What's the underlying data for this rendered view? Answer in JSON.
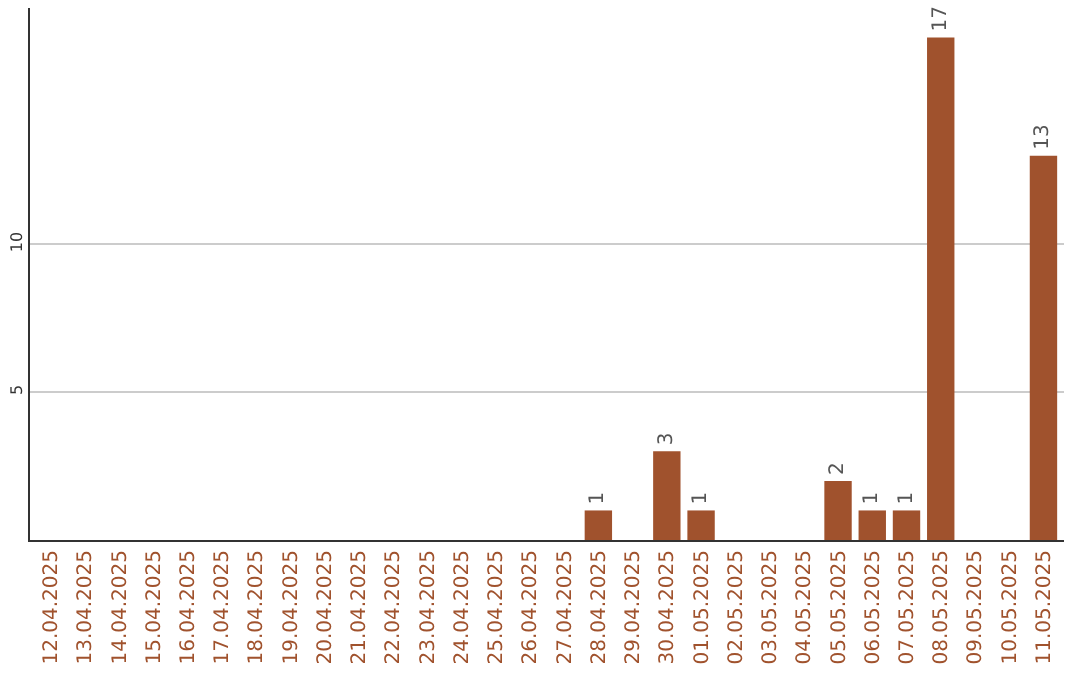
{
  "chart_data": {
    "type": "bar",
    "categories": [
      "12.04.2025",
      "13.04.2025",
      "14.04.2025",
      "15.04.2025",
      "16.04.2025",
      "17.04.2025",
      "18.04.2025",
      "19.04.2025",
      "20.04.2025",
      "21.04.2025",
      "22.04.2025",
      "23.04.2025",
      "24.04.2025",
      "25.04.2025",
      "26.04.2025",
      "27.04.2025",
      "28.04.2025",
      "29.04.2025",
      "30.04.2025",
      "01.05.2025",
      "02.05.2025",
      "03.05.2025",
      "04.05.2025",
      "05.05.2025",
      "06.05.2025",
      "07.05.2025",
      "08.05.2025",
      "09.05.2025",
      "10.05.2025",
      "11.05.2025"
    ],
    "values": [
      0,
      0,
      0,
      0,
      0,
      0,
      0,
      0,
      0,
      0,
      0,
      0,
      0,
      0,
      0,
      0,
      1,
      0,
      3,
      1,
      0,
      0,
      0,
      2,
      1,
      1,
      17,
      0,
      0,
      13
    ],
    "value_labels": [
      null,
      null,
      null,
      null,
      null,
      null,
      null,
      null,
      null,
      null,
      null,
      null,
      null,
      null,
      null,
      null,
      "1",
      null,
      "3",
      "1",
      null,
      null,
      null,
      "2",
      "1",
      "1",
      "17",
      null,
      null,
      "13"
    ],
    "color": "#a0522d",
    "ylim": [
      0,
      18
    ],
    "yticks": [
      5,
      10
    ],
    "grid": "y"
  }
}
